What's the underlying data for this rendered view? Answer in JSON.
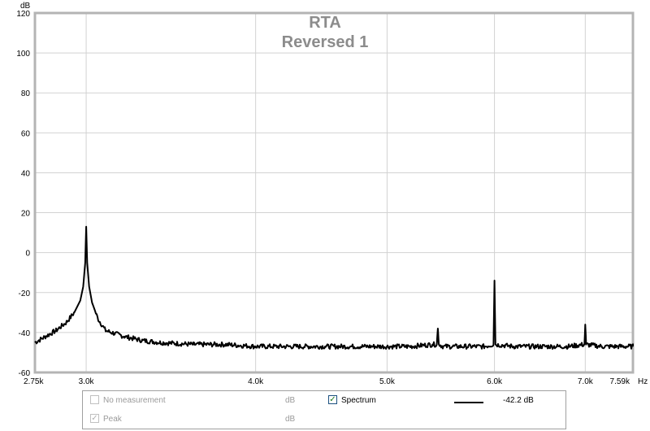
{
  "chart_data": {
    "type": "line",
    "title": "RTA",
    "subtitle": "Reversed 1",
    "ylabel": "dB",
    "xunit": "Hz",
    "x_scale": "log",
    "xlim": [
      2750,
      7590
    ],
    "ylim": [
      -60,
      120
    ],
    "grid": true,
    "x_ticks": [
      {
        "value": 2750,
        "label": "2.75k"
      },
      {
        "value": 3000,
        "label": "3.0k"
      },
      {
        "value": 4000,
        "label": "4.0k"
      },
      {
        "value": 5000,
        "label": "5.0k"
      },
      {
        "value": 6000,
        "label": "6.0k"
      },
      {
        "value": 7000,
        "label": "7.0k"
      },
      {
        "value": 7590,
        "label": "7.59k"
      }
    ],
    "y_ticks": [
      {
        "value": 120,
        "label": "120"
      },
      {
        "value": 100,
        "label": "100"
      },
      {
        "value": 80,
        "label": "80"
      },
      {
        "value": 60,
        "label": "60"
      },
      {
        "value": 40,
        "label": "40"
      },
      {
        "value": 20,
        "label": "20"
      },
      {
        "value": 0,
        "label": "0"
      },
      {
        "value": -20,
        "label": "-20"
      },
      {
        "value": -40,
        "label": "-40"
      },
      {
        "value": -60,
        "label": "-60"
      }
    ],
    "series": [
      {
        "name": "Spectrum",
        "color": "#000000",
        "x": [
          2750,
          2800,
          2850,
          2900,
          2940,
          2970,
          2985,
          2995,
          3000,
          3005,
          3015,
          3030,
          3060,
          3100,
          3200,
          3300,
          3400,
          3600,
          3800,
          4000,
          4200,
          4500,
          4800,
          5000,
          5200,
          5400,
          5440,
          5450,
          5460,
          5500,
          5700,
          5900,
          5990,
          6000,
          6010,
          6200,
          6500,
          6800,
          6990,
          7000,
          7010,
          7200,
          7400,
          7590
        ],
        "y": [
          -45,
          -42,
          -39,
          -35,
          -30,
          -24,
          -17,
          -5,
          13,
          -5,
          -17,
          -25,
          -33,
          -39,
          -42,
          -44,
          -45,
          -46,
          -46,
          -47,
          -47,
          -47,
          -47,
          -47,
          -47,
          -46,
          -46,
          -38,
          -46,
          -47,
          -47,
          -47,
          -46,
          -14,
          -46,
          -47,
          -47,
          -47,
          -46,
          -36,
          -46,
          -47,
          -47,
          -47
        ]
      }
    ]
  },
  "legend": {
    "items": [
      {
        "label": "No measurement",
        "unit": "dB",
        "checked": false,
        "enabled": false
      },
      {
        "label": "Peak",
        "unit": "dB",
        "checked": true,
        "enabled": false
      },
      {
        "label": "Spectrum",
        "value": "-42.2 dB",
        "checked": true,
        "enabled": true,
        "color": "#000000"
      }
    ]
  },
  "colors": {
    "frame": "#b4b4b4",
    "grid": "#d2d2d2",
    "title": "#8c8c8c",
    "trace": "#000000"
  }
}
